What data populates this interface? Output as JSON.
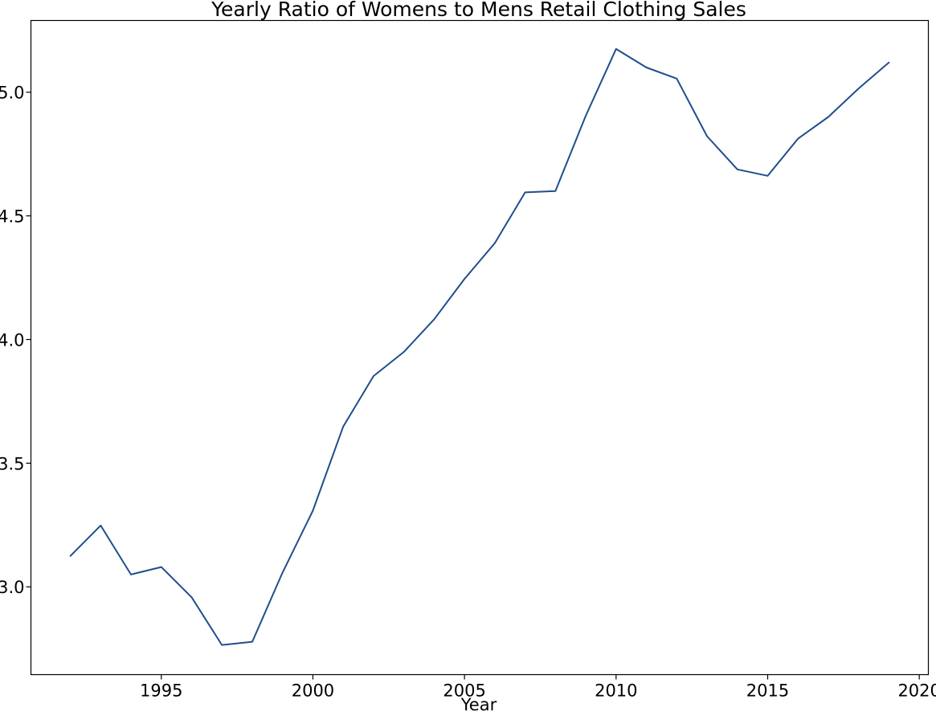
{
  "chart_data": {
    "type": "line",
    "title": "Yearly Ratio of Womens to Mens Retail Clothing Sales",
    "xlabel": "Year",
    "ylabel": "",
    "xlim": [
      1990.7,
      2020.3
    ],
    "ylim": [
      2.645,
      5.29
    ],
    "xticks": [
      1995,
      2000,
      2005,
      2010,
      2015,
      2020
    ],
    "yticks": [
      3.0,
      3.5,
      4.0,
      4.5,
      5.0
    ],
    "ytick_labels": [
      "3.0",
      "3.5",
      "4.0",
      "4.5",
      "5.0"
    ],
    "grid": false,
    "series": [
      {
        "color": "#1f4e8c",
        "x": [
          1992,
          1993,
          1994,
          1995,
          1996,
          1997,
          1998,
          1999,
          2000,
          2001,
          2002,
          2003,
          2004,
          2005,
          2006,
          2007,
          2008,
          2009,
          2010,
          2011,
          2012,
          2013,
          2014,
          2015,
          2016,
          2017,
          2018,
          2019
        ],
        "y": [
          3.125,
          3.248,
          3.05,
          3.08,
          2.958,
          2.765,
          2.778,
          3.058,
          3.308,
          3.648,
          3.852,
          3.95,
          4.082,
          4.245,
          4.39,
          4.595,
          4.6,
          4.905,
          5.175,
          5.1,
          5.055,
          4.822,
          4.688,
          4.662,
          4.812,
          4.9,
          5.015,
          5.12
        ]
      }
    ]
  }
}
